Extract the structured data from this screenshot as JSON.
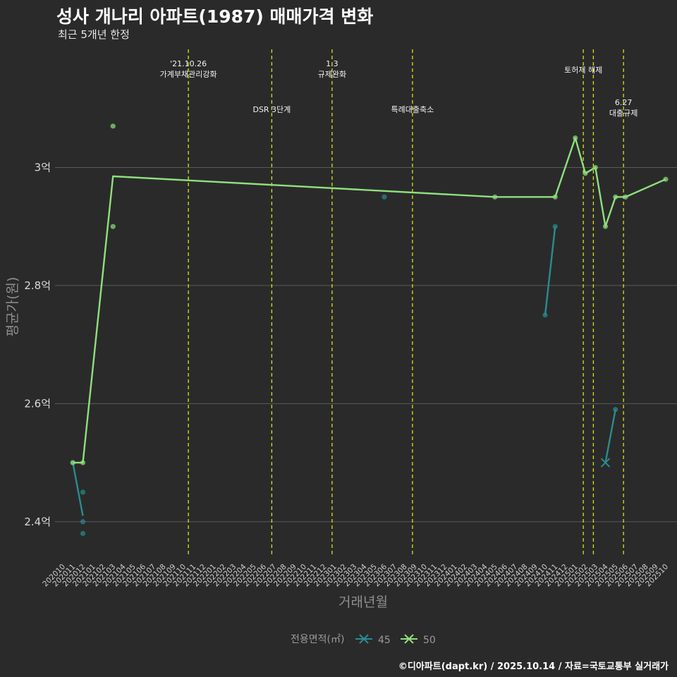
{
  "title": "성사 개나리 아파트(1987) 매매가격 변화",
  "subtitle": "최근 5개년 한정",
  "footer": "©디아파트(dapt.kr) / 2025.10.14 / 자료=국토교통부 실거래가",
  "colors": {
    "s45": "#2a8c91",
    "s50": "#8ee07e",
    "event": "#d4e31a",
    "background": "#2b2a2a"
  },
  "chart_data": {
    "type": "line",
    "xlabel": "거래년월",
    "ylabel": "평균가(원)",
    "ylim": [
      2.34,
      3.2
    ],
    "yticks": [
      2.4,
      2.6,
      2.8,
      3.0
    ],
    "ytick_labels": [
      "2.4억",
      "2.6억",
      "2.8억",
      "3억"
    ],
    "categories": [
      "202010",
      "202011",
      "202012",
      "202101",
      "202102",
      "202103",
      "202104",
      "202105",
      "202106",
      "202107",
      "202108",
      "202109",
      "202110",
      "202111",
      "202112",
      "202201",
      "202202",
      "202203",
      "202204",
      "202205",
      "202206",
      "202207",
      "202208",
      "202209",
      "202210",
      "202211",
      "202212",
      "202301",
      "202302",
      "202303",
      "202304",
      "202305",
      "202306",
      "202307",
      "202308",
      "202309",
      "202310",
      "202311",
      "202312",
      "202401",
      "202402",
      "202403",
      "202404",
      "202405",
      "202406",
      "202407",
      "202408",
      "202409",
      "202410",
      "202411",
      "202412",
      "202501",
      "202502",
      "202503",
      "202504",
      "202505",
      "202506",
      "202507",
      "202508",
      "202509",
      "202510"
    ],
    "legend_title": "전용면적(㎡)",
    "legend_position": "bottom",
    "series": [
      {
        "name": "45",
        "color_key": "s45",
        "segments": [
          [
            [
              "202011",
              2.5
            ],
            [
              "202012",
              2.41
            ]
          ],
          [
            [
              "202410",
              2.75
            ],
            [
              "202411",
              2.9
            ]
          ],
          [
            [
              "202504",
              2.5
            ],
            [
              "202505",
              2.59
            ]
          ]
        ],
        "points": [
          [
            "202011",
            2.5
          ],
          [
            "202012",
            2.45
          ],
          [
            "202012",
            2.4
          ],
          [
            "202012",
            2.38
          ],
          [
            "202306",
            2.95
          ],
          [
            "202410",
            2.75
          ],
          [
            "202411",
            2.9
          ],
          [
            "202505",
            2.59
          ]
        ],
        "cross_marks": [
          [
            "202504",
            2.5
          ]
        ]
      },
      {
        "name": "50",
        "color_key": "s50",
        "line": [
          [
            "202011",
            2.5
          ],
          [
            "202012",
            2.5
          ],
          [
            "202103",
            2.985
          ],
          [
            "202405",
            2.95
          ],
          [
            "202411",
            2.95
          ],
          [
            "202501",
            3.05
          ],
          [
            "202502",
            2.99
          ],
          [
            "202503",
            3.0
          ],
          [
            "202504",
            2.9
          ],
          [
            "202505",
            2.95
          ],
          [
            "202506",
            2.95
          ],
          [
            "202510",
            2.98
          ]
        ],
        "points": [
          [
            "202011",
            2.5
          ],
          [
            "202012",
            2.5
          ],
          [
            "202103",
            3.07
          ],
          [
            "202103",
            2.9
          ],
          [
            "202405",
            2.95
          ],
          [
            "202411",
            2.95
          ],
          [
            "202501",
            3.05
          ],
          [
            "202502",
            2.99
          ],
          [
            "202503",
            3.0
          ],
          [
            "202504",
            2.9
          ],
          [
            "202505",
            2.95
          ],
          [
            "202506",
            2.95
          ],
          [
            "202510",
            2.98
          ]
        ]
      }
    ],
    "events": [
      {
        "x": 202110.5,
        "lines": [
          "'21.10.26",
          "가계부채관리강화"
        ],
        "row": "high"
      },
      {
        "x": 202206.8,
        "lines": [
          "DSR 3단계"
        ],
        "row": "low"
      },
      {
        "x": 202212.8,
        "lines": [
          "1.3",
          "규제완화"
        ],
        "row": "high"
      },
      {
        "x": 202308.8,
        "lines": [
          "특례대출축소"
        ],
        "row": "low"
      },
      {
        "x": 202501.8,
        "lines": [
          "토허제 해제"
        ],
        "row": "mid"
      },
      {
        "x": 202502.8,
        "lines": [],
        "row": "none"
      },
      {
        "x": 202505.8,
        "lines": [
          "6.27",
          "대출규제"
        ],
        "row": "low2"
      }
    ]
  }
}
